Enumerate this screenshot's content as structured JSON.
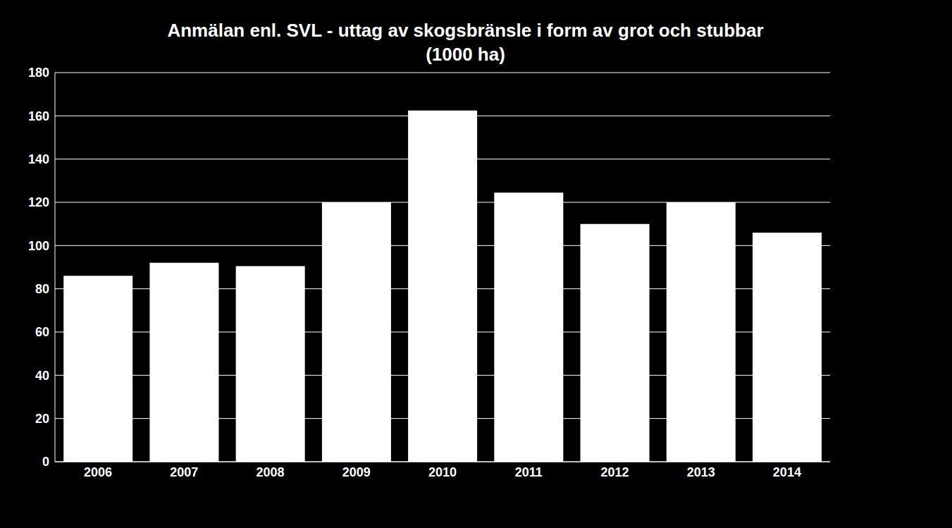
{
  "chart_data": {
    "type": "bar",
    "title": "Anmälan enl. SVL - uttag av skogsbränsle i form av grot och stubbar (1000 ha)",
    "categories": [
      "2006",
      "2007",
      "2008",
      "2009",
      "2010",
      "2011",
      "2012",
      "2013",
      "2014"
    ],
    "values": [
      86,
      92,
      90.5,
      120,
      162.5,
      124.5,
      110,
      120,
      106
    ],
    "color": "#ffffff",
    "ylim": [
      0,
      180
    ],
    "yticks": [
      0,
      20,
      40,
      60,
      80,
      100,
      120,
      140,
      160,
      180
    ],
    "grid": true
  }
}
